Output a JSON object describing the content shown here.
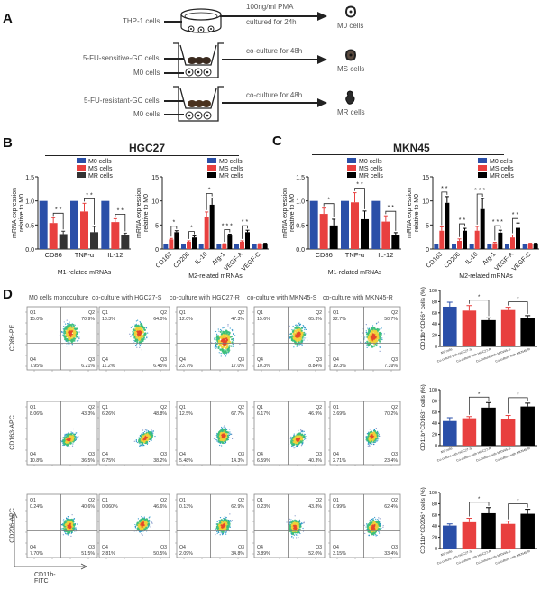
{
  "panel_A": {
    "letter": "A",
    "rows": [
      {
        "inputs": [
          "THP-1 cells"
        ],
        "condition_top": "100ng/ml PMA",
        "condition_bottom": "cultured for 24h",
        "output": "M0 cells"
      },
      {
        "inputs": [
          "5-FU-sensitive-GC cells",
          "M0 cells"
        ],
        "condition_top": "co-culture for 48h",
        "condition_bottom": "",
        "output": "MS cells"
      },
      {
        "inputs": [
          "5-FU-resistant-GC cells",
          "M0 cells"
        ],
        "condition_top": "co-culture for 48h",
        "condition_bottom": "",
        "output": "MR cells"
      }
    ]
  },
  "panel_B": {
    "letter": "B",
    "title": "HGC27"
  },
  "panel_C": {
    "letter": "C",
    "title": "MKN45"
  },
  "panel_D": {
    "letter": "D",
    "column_titles": [
      "M0 cells monoculture",
      "co-culture with HGC27-S",
      "co-culture with HGC27-R",
      "co-culture with MKN45-S",
      "co-culture with MKN45-R"
    ],
    "row_ylabels": [
      "CD86-PE",
      "CD163-APC",
      "CD206-APC"
    ],
    "xlabel": "CD11b-FITC",
    "quadrant_names": [
      "Q1",
      "Q2",
      "Q3",
      "Q4"
    ],
    "rows": [
      [
        {
          "Q1": "15.0%",
          "Q2": "70.9%",
          "Q3": "6.21%",
          "Q4": "7.95%"
        },
        {
          "Q1": "18.3%",
          "Q2": "64.0%",
          "Q3": "6.45%",
          "Q4": "11.2%"
        },
        {
          "Q1": "12.0%",
          "Q2": "47.3%",
          "Q3": "17.0%",
          "Q4": "23.7%"
        },
        {
          "Q1": "15.6%",
          "Q2": "65.3%",
          "Q3": "8.84%",
          "Q4": "10.3%"
        },
        {
          "Q1": "22.7%",
          "Q2": "50.7%",
          "Q3": "7.39%",
          "Q4": "19.3%"
        }
      ],
      [
        {
          "Q1": "8.06%",
          "Q2": "43.3%",
          "Q3": "36.5%",
          "Q4": "10.8%"
        },
        {
          "Q1": "6.26%",
          "Q2": "48.8%",
          "Q3": "38.2%",
          "Q4": "6.75%"
        },
        {
          "Q1": "12.5%",
          "Q2": "67.7%",
          "Q3": "14.3%",
          "Q4": "5.48%"
        },
        {
          "Q1": "6.17%",
          "Q2": "46.9%",
          "Q3": "40.3%",
          "Q4": "6.59%"
        },
        {
          "Q1": "3.69%",
          "Q2": "70.2%",
          "Q3": "23.4%",
          "Q4": "2.71%"
        }
      ],
      [
        {
          "Q1": "0.24%",
          "Q2": "40.6%",
          "Q3": "51.5%",
          "Q4": "7.70%"
        },
        {
          "Q1": "0.060%",
          "Q2": "46.6%",
          "Q3": "50.5%",
          "Q4": "2.81%"
        },
        {
          "Q1": "0.13%",
          "Q2": "62.9%",
          "Q3": "34.8%",
          "Q4": "2.09%"
        },
        {
          "Q1": "0.23%",
          "Q2": "43.8%",
          "Q3": "52.0%",
          "Q4": "3.89%"
        },
        {
          "Q1": "0.99%",
          "Q2": "62.4%",
          "Q3": "33.4%",
          "Q4": "3.15%"
        }
      ]
    ]
  },
  "colors": {
    "M0": "#2a4fa8",
    "MS": "#e8403f",
    "MR_B": "#333333",
    "MR_C": "#000000"
  },
  "chart_data": [
    {
      "id": "B-M1",
      "type": "bar",
      "panel": "B",
      "categories": [
        "CD86",
        "TNF-α",
        "IL-12"
      ],
      "series": [
        {
          "name": "M0 cells",
          "values": [
            1.0,
            1.0,
            1.0
          ],
          "errors": [
            0,
            0,
            0
          ]
        },
        {
          "name": "MS cells",
          "values": [
            0.54,
            0.78,
            0.56
          ],
          "errors": [
            0.11,
            0.17,
            0.07
          ]
        },
        {
          "name": "MR cells",
          "values": [
            0.31,
            0.35,
            0.29
          ],
          "errors": [
            0.06,
            0.12,
            0.04
          ]
        }
      ],
      "significance": [
        {
          "category": 0,
          "label": "* *"
        },
        {
          "category": 1,
          "label": "* *"
        },
        {
          "category": 2,
          "label": "* *"
        }
      ],
      "xlabel": "M1-related mRNAs",
      "ylabel": "mRNA expression relative to M0",
      "ylim": [
        0,
        1.5
      ],
      "yticks": [
        "0.0",
        "0.5",
        "1.0",
        "1.5"
      ],
      "legend": "top"
    },
    {
      "id": "B-M2",
      "type": "bar",
      "panel": "B",
      "categories": [
        "CD163",
        "CD206",
        "IL-10",
        "Arg-1",
        "VEGF-A",
        "VEGF-C"
      ],
      "series": [
        {
          "name": "M0 cells",
          "values": [
            1,
            1,
            1,
            1,
            1,
            1
          ],
          "errors": [
            0,
            0,
            0,
            0,
            0,
            0
          ]
        },
        {
          "name": "MS cells",
          "values": [
            2.0,
            1.5,
            6.7,
            1.0,
            1.5,
            1.0
          ],
          "errors": [
            0.2,
            0.2,
            1.0,
            0.1,
            0.2,
            0.1
          ]
        },
        {
          "name": "MR cells",
          "values": [
            3.5,
            2.4,
            9.2,
            2.8,
            3.5,
            1.1
          ],
          "errors": [
            0.3,
            0.3,
            1.4,
            0.3,
            0.4,
            0.1
          ]
        }
      ],
      "significance": [
        {
          "category": 0,
          "label": "*"
        },
        {
          "category": 1,
          "label": "*"
        },
        {
          "category": 2,
          "label": "*"
        },
        {
          "category": 3,
          "label": "* * *"
        },
        {
          "category": 4,
          "label": "* *"
        }
      ],
      "xlabel": "M2-related mRNAs",
      "ylabel": "mRNA expression relative to M0",
      "ylim": [
        0,
        15
      ],
      "yticks": [
        "0",
        "5",
        "10",
        "15"
      ],
      "legend": "top-right"
    },
    {
      "id": "C-M1",
      "type": "bar",
      "panel": "C",
      "categories": [
        "CD86",
        "TNF-α",
        "IL-12"
      ],
      "series": [
        {
          "name": "M0 cells",
          "values": [
            1.0,
            1.0,
            1.0
          ],
          "errors": [
            0,
            0,
            0
          ]
        },
        {
          "name": "MS cells",
          "values": [
            0.73,
            0.97,
            0.57
          ],
          "errors": [
            0.12,
            0.2,
            0.12
          ]
        },
        {
          "name": "MR cells",
          "values": [
            0.49,
            0.62,
            0.29
          ],
          "errors": [
            0.13,
            0.17,
            0.05
          ]
        }
      ],
      "significance": [
        {
          "category": 0,
          "label": "*"
        },
        {
          "category": 1,
          "label": "* *"
        },
        {
          "category": 2,
          "label": "* *"
        }
      ],
      "xlabel": "M1-related mRNAs",
      "ylabel": "mRNA expression relative to M0",
      "ylim": [
        0,
        1.5
      ],
      "yticks": [
        "0.0",
        "0.5",
        "1.0",
        "1.5"
      ],
      "legend": "top"
    },
    {
      "id": "C-M2",
      "type": "bar",
      "panel": "C",
      "categories": [
        "CD163",
        "CD206",
        "IL-10",
        "Arg-1",
        "VEGF-A",
        "VEGF-C"
      ],
      "series": [
        {
          "name": "M0 cells",
          "values": [
            1,
            1,
            1,
            1,
            1,
            1
          ],
          "errors": [
            0,
            0,
            0,
            0,
            0,
            0
          ]
        },
        {
          "name": "MS cells",
          "values": [
            3.8,
            1.7,
            3.8,
            1.2,
            2.4,
            1.1
          ],
          "errors": [
            0.8,
            0.4,
            0.9,
            0.2,
            0.5,
            0.1
          ]
        },
        {
          "name": "MR cells",
          "values": [
            9.6,
            3.8,
            8.3,
            3.4,
            4.4,
            1.1
          ],
          "errors": [
            1.3,
            0.5,
            2.2,
            0.5,
            1.0,
            0.1
          ]
        }
      ],
      "significance": [
        {
          "category": 0,
          "label": "* *"
        },
        {
          "category": 1,
          "label": "* *"
        },
        {
          "category": 2,
          "label": "* * *"
        },
        {
          "category": 3,
          "label": "* * *"
        },
        {
          "category": 4,
          "label": "* *"
        }
      ],
      "xlabel": "M2-related mRNAs",
      "ylabel": "mRNA expression relative to M0",
      "ylim": [
        0,
        15
      ],
      "yticks": [
        "0",
        "5",
        "10",
        "15"
      ],
      "legend": "top-right"
    },
    {
      "id": "D-CD86",
      "type": "bar",
      "panel": "D",
      "categories": [
        "M0 cells",
        "Co-culture with HGC27-S",
        "Co-culture with HGC27-R",
        "Co-culture with MKN45-S",
        "Co-culture with MKN45-R"
      ],
      "values": [
        71,
        64,
        47,
        65,
        50
      ],
      "errors": [
        8,
        9,
        4,
        5,
        5
      ],
      "bar_colors": [
        "M0",
        "MS",
        "MR_C",
        "MS",
        "MR_C"
      ],
      "significance": [
        {
          "from": 1,
          "to": 2,
          "label": "*"
        },
        {
          "from": 3,
          "to": 4,
          "label": "*"
        }
      ],
      "ylabel": "CD11b⁺CD86⁺ cells (%)",
      "ylim": [
        0,
        100
      ],
      "yticks": [
        "0",
        "20",
        "40",
        "60",
        "80",
        "100"
      ]
    },
    {
      "id": "D-CD163",
      "type": "bar",
      "panel": "D",
      "categories": [
        "M0 cells",
        "Co-culture with HGC27-S",
        "Co-culture with HGC27-R",
        "Co-culture with MKN45-S",
        "Co-culture with MKN45-R"
      ],
      "values": [
        44,
        49,
        68,
        47,
        70
      ],
      "errors": [
        6,
        3,
        9,
        7,
        6
      ],
      "bar_colors": [
        "M0",
        "MS",
        "MR_C",
        "MS",
        "MR_C"
      ],
      "significance": [
        {
          "from": 1,
          "to": 2,
          "label": "*"
        },
        {
          "from": 3,
          "to": 4,
          "label": "*"
        }
      ],
      "ylabel": "CD11b⁺CD163⁺ cells (%)",
      "ylim": [
        0,
        100
      ],
      "yticks": [
        "0",
        "20",
        "40",
        "60",
        "80",
        "100"
      ]
    },
    {
      "id": "D-CD206",
      "type": "bar",
      "panel": "D",
      "categories": [
        "M0 cells",
        "Co-culture with HGC27-S",
        "Co-culture with HGC27-R",
        "Co-culture with MKN45-S",
        "Co-culture with MKN45-R"
      ],
      "values": [
        41,
        47,
        63,
        44,
        62
      ],
      "errors": [
        3,
        7,
        10,
        5,
        8
      ],
      "bar_colors": [
        "M0",
        "MS",
        "MR_C",
        "MS",
        "MR_C"
      ],
      "significance": [
        {
          "from": 1,
          "to": 2,
          "label": "*"
        },
        {
          "from": 3,
          "to": 4,
          "label": "*"
        }
      ],
      "ylabel": "CD11b⁺CD206⁺ cells (%)",
      "ylim": [
        0,
        100
      ],
      "yticks": [
        "0",
        "20",
        "40",
        "60",
        "80",
        "100"
      ]
    }
  ]
}
